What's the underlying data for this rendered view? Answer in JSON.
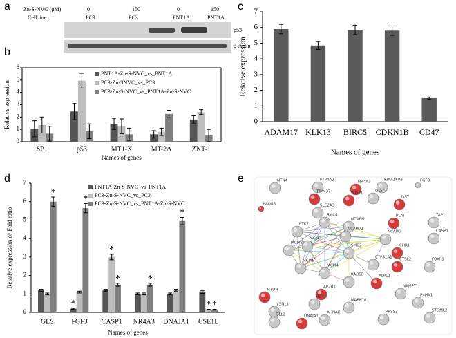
{
  "panel_labels": [
    "a",
    "b",
    "c",
    "d",
    "e"
  ],
  "blot": {
    "treatment_label": "Zn-S-NVC (μM)",
    "doses": [
      "0",
      "150",
      "0",
      "150"
    ],
    "cell_line_label": "Cell line",
    "cell_lines": [
      "PC3",
      "PC3",
      "PNT1A",
      "PNT1A"
    ],
    "proteins": [
      "p53",
      "β-Actin"
    ]
  },
  "chart_data": [
    {
      "type": "bar",
      "y_label": "Relative  expression",
      "x_label": "Names of genes",
      "categories": [
        "SP1",
        "p53",
        "MT1-X",
        "MT-2A",
        "ZNT-1"
      ],
      "series": [
        {
          "name": "PNT1A-Zn-S-NVC_vs_PNT1A",
          "color": "#555555",
          "values": [
            1.05,
            2.45,
            1.45,
            0.6,
            1.8
          ],
          "errors": [
            0.65,
            0.65,
            0.45,
            0.3,
            0.3
          ]
        },
        {
          "name": "PC3-Zn-SNVC_vs_PC3",
          "color": "#bdbdbd",
          "values": [
            1.35,
            4.95,
            1.25,
            0.8,
            2.4
          ],
          "errors": [
            0.65,
            0.6,
            0.6,
            0.3,
            0.2
          ]
        },
        {
          "name": "PC3-Zn-S-NVC_vs_PNT1A-Zn-S-NVC",
          "color": "#7f7f7f",
          "values": [
            0.65,
            0.85,
            0.6,
            2.25,
            0.5
          ],
          "errors": [
            0.6,
            0.6,
            0.5,
            0.3,
            0.5
          ]
        }
      ],
      "ylim": [
        0,
        6
      ],
      "yticks": [
        0,
        1,
        2,
        3,
        4,
        5,
        6
      ]
    },
    {
      "type": "bar",
      "y_label": "Relative  expression",
      "x_label": "Names of genes",
      "categories": [
        "ADAM17",
        "KLK13",
        "BIRC5",
        "CDKN1B",
        "CD47"
      ],
      "values": [
        5.9,
        4.85,
        5.85,
        5.8,
        1.5
      ],
      "errors": [
        0.3,
        0.25,
        0.3,
        0.3,
        0.07
      ],
      "color": "#5a5a5a",
      "ylim": [
        0,
        7
      ],
      "yticks": [
        0,
        1,
        2,
        3,
        4,
        5,
        6,
        7
      ]
    },
    {
      "type": "bar",
      "y_label": "Relative  expression  or Fold ratio",
      "x_label": "Names of genes",
      "categories": [
        "GLS",
        "FGF3",
        "CASP1",
        "NR4A3",
        "DNAJA1",
        "CSE1L"
      ],
      "series": [
        {
          "name": "PNT1A-Zn-S-NVC_vs_PNT1A",
          "color": "#555555",
          "values": [
            1.2,
            0.2,
            1.2,
            1.0,
            1.0,
            1.1
          ],
          "errors": [
            0.05,
            0.03,
            0.05,
            0.05,
            0.05,
            0.07
          ],
          "significance": [
            null,
            "*",
            null,
            null,
            null,
            null
          ]
        },
        {
          "name": "PC3-Zn-S-NVC_vs_PC3",
          "color": "#bdbdbd",
          "values": [
            1.0,
            1.1,
            3.0,
            1.0,
            1.2,
            0.15
          ],
          "errors": [
            0.05,
            0.05,
            0.15,
            0.05,
            0.05,
            0.02
          ],
          "significance": [
            null,
            null,
            "*",
            null,
            null,
            "*"
          ]
        },
        {
          "name": "PC3-Zn-S-NVC_vs_PNT1A-Zn-S-NVC",
          "color": "#7f7f7f",
          "values": [
            6.0,
            5.65,
            1.5,
            1.5,
            4.95,
            0.15
          ],
          "errors": [
            0.25,
            0.25,
            0.08,
            0.08,
            0.2,
            0.02
          ],
          "significance": [
            "*",
            "*",
            "*",
            "*",
            "*",
            "*"
          ]
        }
      ],
      "ylim": [
        0,
        7
      ],
      "yticks": [
        0,
        1,
        2,
        3,
        4,
        5,
        6,
        7
      ]
    }
  ],
  "network": {
    "nodes": [
      {
        "label": "NTN4",
        "color": "#c8c8c8"
      },
      {
        "label": "PTP4A2",
        "color": "#c8c8c8"
      },
      {
        "label": "NR4A3",
        "color": "#d83a3a"
      },
      {
        "label": "KIAA1683",
        "color": "#c8c8c8"
      },
      {
        "label": "FGF3",
        "color": "#c8c8c8"
      },
      {
        "label": "TRIM37",
        "color": "#d83a3a"
      },
      {
        "label": "WISP1",
        "color": "#d83a3a"
      },
      {
        "label": "GLS",
        "color": "#c8c8c8"
      },
      {
        "label": "SLC2A3",
        "color": "#c8c8c8"
      },
      {
        "label": "DST",
        "color": "#d83a3a"
      },
      {
        "label": "PAQR3",
        "color": "#d83a3a"
      },
      {
        "label": "NCAPH",
        "color": "#c8c8c8"
      },
      {
        "label": "PLAT",
        "color": "#d83a3a"
      },
      {
        "label": "SMC4",
        "color": "#c8c8c8"
      },
      {
        "label": "NCAPD2",
        "color": "#c8c8c8"
      },
      {
        "label": "TAP1",
        "color": "#c8c8c8"
      },
      {
        "label": "PTK7",
        "color": "#c8c8c8"
      },
      {
        "label": "MCM7",
        "color": "#c8c8c8"
      },
      {
        "label": "NCAPG",
        "color": "#c8c8c8"
      },
      {
        "label": "CASP1",
        "color": "#c8c8c8"
      },
      {
        "label": "MCM3",
        "color": "#c8c8c8"
      },
      {
        "label": "SMC2",
        "color": "#c8c8c8"
      },
      {
        "label": "CHR1",
        "color": "#d83a3a"
      },
      {
        "label": "CTSL2",
        "color": "#d83a3a"
      },
      {
        "label": "FOXP1",
        "color": "#c8c8c8"
      },
      {
        "label": "CYP51A1",
        "color": "#c8c8c8"
      },
      {
        "label": "MCM4",
        "color": "#c8c8c8"
      },
      {
        "label": "ALPL2",
        "color": "#d83a3a"
      },
      {
        "label": "RAB6B",
        "color": "#c8c8c8"
      },
      {
        "label": "MCM5",
        "color": "#c8c8c8"
      },
      {
        "label": "MTDH",
        "color": "#d83a3a"
      },
      {
        "label": "AP2B1",
        "color": "#d83a3a"
      },
      {
        "label": "NAMPT",
        "color": "#c8c8c8"
      },
      {
        "label": "P4HA1",
        "color": "#c8c8c8"
      },
      {
        "label": "VSNL1",
        "color": "#c8c8c8"
      },
      {
        "label": "PDXK",
        "color": "#c8c8c8"
      },
      {
        "label": "MAPK10",
        "color": "#c8c8c8"
      },
      {
        "label": "STOML2",
        "color": "#c8c8c8"
      },
      {
        "label": "ELL2",
        "color": "#c8c8c8"
      },
      {
        "label": "AHNAK",
        "color": "#c8c8c8"
      },
      {
        "label": "PRSS3",
        "color": "#c8c8c8"
      },
      {
        "label": "DNAJA1",
        "color": "#d83a3a"
      }
    ]
  }
}
